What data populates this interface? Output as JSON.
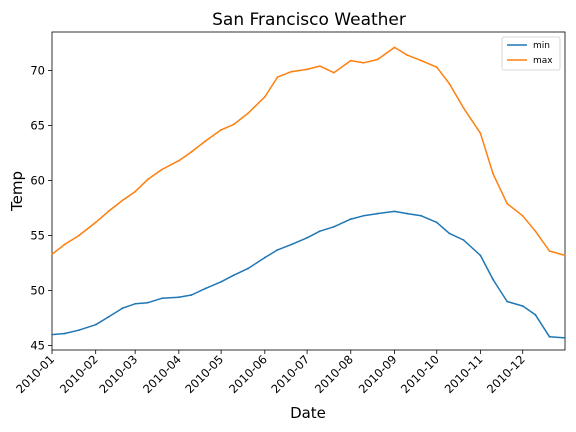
{
  "chart_data": {
    "type": "line",
    "title": "San Francisco Weather",
    "xlabel": "Date",
    "ylabel": "Temp",
    "xlim": [
      "2010-01-01",
      "2010-12-31"
    ],
    "ylim": [
      44.6,
      73.5
    ],
    "x_ticks": [
      "2010-01",
      "2010-02",
      "2010-03",
      "2010-04",
      "2010-05",
      "2010-06",
      "2010-07",
      "2010-08",
      "2010-09",
      "2010-10",
      "2010-11",
      "2010-12"
    ],
    "y_ticks": [
      45,
      50,
      55,
      60,
      65,
      70
    ],
    "grid": false,
    "legend_position": "top-right",
    "x": [
      "2010-01-01",
      "2010-01-10",
      "2010-01-20",
      "2010-02-01",
      "2010-02-10",
      "2010-02-20",
      "2010-03-01",
      "2010-03-10",
      "2010-03-20",
      "2010-04-01",
      "2010-04-10",
      "2010-04-20",
      "2010-05-01",
      "2010-05-10",
      "2010-05-20",
      "2010-06-01",
      "2010-06-10",
      "2010-06-20",
      "2010-07-01",
      "2010-07-10",
      "2010-07-20",
      "2010-08-01",
      "2010-08-10",
      "2010-08-20",
      "2010-09-01",
      "2010-09-10",
      "2010-09-20",
      "2010-10-01",
      "2010-10-10",
      "2010-10-20",
      "2010-11-01",
      "2010-11-10",
      "2010-11-20",
      "2010-12-01",
      "2010-12-10",
      "2010-12-20",
      "2010-12-31"
    ],
    "series": [
      {
        "name": "min",
        "color": "#1f77b4",
        "values": [
          46.0,
          46.1,
          46.4,
          46.9,
          47.6,
          48.4,
          48.8,
          48.9,
          49.3,
          49.4,
          49.6,
          50.2,
          50.8,
          51.4,
          52.0,
          53.0,
          53.7,
          54.2,
          54.8,
          55.4,
          55.8,
          56.5,
          56.8,
          57.0,
          57.2,
          57.0,
          56.8,
          56.2,
          55.2,
          54.6,
          53.2,
          51.0,
          49.0,
          48.6,
          47.8,
          45.8,
          45.7
        ]
      },
      {
        "name": "max",
        "color": "#ff7f0e",
        "values": [
          53.3,
          54.2,
          55.0,
          56.2,
          57.2,
          58.2,
          59.0,
          60.1,
          61.0,
          61.8,
          62.6,
          63.6,
          64.6,
          65.1,
          66.1,
          67.6,
          69.4,
          69.9,
          70.1,
          70.4,
          69.8,
          70.9,
          70.7,
          71.0,
          72.1,
          71.4,
          70.9,
          70.3,
          68.8,
          66.6,
          64.3,
          60.6,
          57.9,
          56.8,
          55.4,
          53.6,
          53.2
        ]
      }
    ]
  }
}
